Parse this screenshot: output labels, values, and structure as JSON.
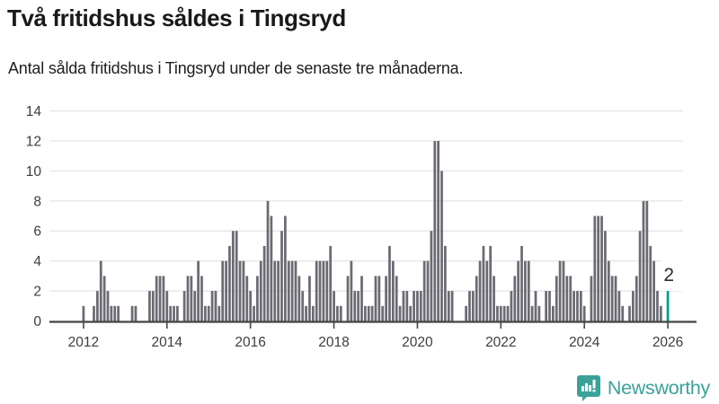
{
  "header": {
    "title": "Två fritidshus såldes i Tingsryd",
    "subtitle": "Antal sålda fritidshus i Tingsryd under de senaste tre månaderna."
  },
  "chart_data": {
    "type": "bar",
    "title": "Två fritidshus såldes i Tingsryd",
    "subtitle": "Antal sålda fritidshus i Tingsryd under de senaste tre månaderna.",
    "ylabel": "Antal sålda fritidshus",
    "ylim": [
      0,
      14
    ],
    "grid": true,
    "start_month": "2011-04",
    "end_month": "2026-01",
    "y_ticks": [
      0,
      2,
      4,
      6,
      8,
      10,
      12,
      14
    ],
    "x_tick_labels": [
      "2012",
      "2014",
      "2016",
      "2018",
      "2020",
      "2022",
      "2024",
      "2026"
    ],
    "x_tick_month_indices": [
      9,
      33,
      57,
      81,
      105,
      129,
      153,
      177
    ],
    "values": [
      0,
      0,
      0,
      0,
      0,
      0,
      0,
      0,
      0,
      1,
      0,
      0,
      1,
      2,
      4,
      3,
      2,
      1,
      1,
      1,
      0,
      0,
      0,
      1,
      1,
      0,
      0,
      0,
      2,
      2,
      3,
      3,
      3,
      2,
      1,
      1,
      1,
      0,
      2,
      3,
      3,
      2,
      4,
      3,
      1,
      1,
      2,
      2,
      1,
      4,
      4,
      5,
      6,
      6,
      4,
      4,
      3,
      2,
      1,
      3,
      4,
      5,
      8,
      7,
      4,
      4,
      6,
      7,
      4,
      4,
      4,
      3,
      2,
      1,
      3,
      1,
      4,
      4,
      4,
      4,
      5,
      2,
      1,
      1,
      0,
      3,
      4,
      2,
      2,
      3,
      1,
      1,
      1,
      3,
      3,
      1,
      3,
      5,
      4,
      3,
      1,
      2,
      2,
      1,
      2,
      2,
      2,
      4,
      4,
      6,
      12,
      12,
      10,
      5,
      2,
      2,
      0,
      0,
      0,
      1,
      2,
      2,
      3,
      4,
      5,
      4,
      5,
      3,
      1,
      1,
      1,
      1,
      2,
      3,
      4,
      5,
      4,
      4,
      1,
      2,
      1,
      0,
      2,
      2,
      1,
      3,
      4,
      4,
      3,
      3,
      2,
      2,
      2,
      1,
      0,
      3,
      7,
      7,
      7,
      6,
      4,
      3,
      3,
      2,
      1,
      0,
      1,
      2,
      3,
      6,
      8,
      8,
      5,
      4,
      2,
      1,
      0,
      2
    ],
    "highlight": {
      "index_from_end": 1,
      "value": 2,
      "label": "2"
    },
    "colors": {
      "bar": "#6b6b73",
      "highlight": "#009b92",
      "grid": "#e7e7e7",
      "axis": "#454545",
      "tick_label": "#3d3d3d",
      "value_label": "#2b2b2b",
      "label_box": "#ffffff"
    }
  },
  "footer": {
    "brand": "Newsworthy",
    "brand_color": "#3ba29a"
  }
}
